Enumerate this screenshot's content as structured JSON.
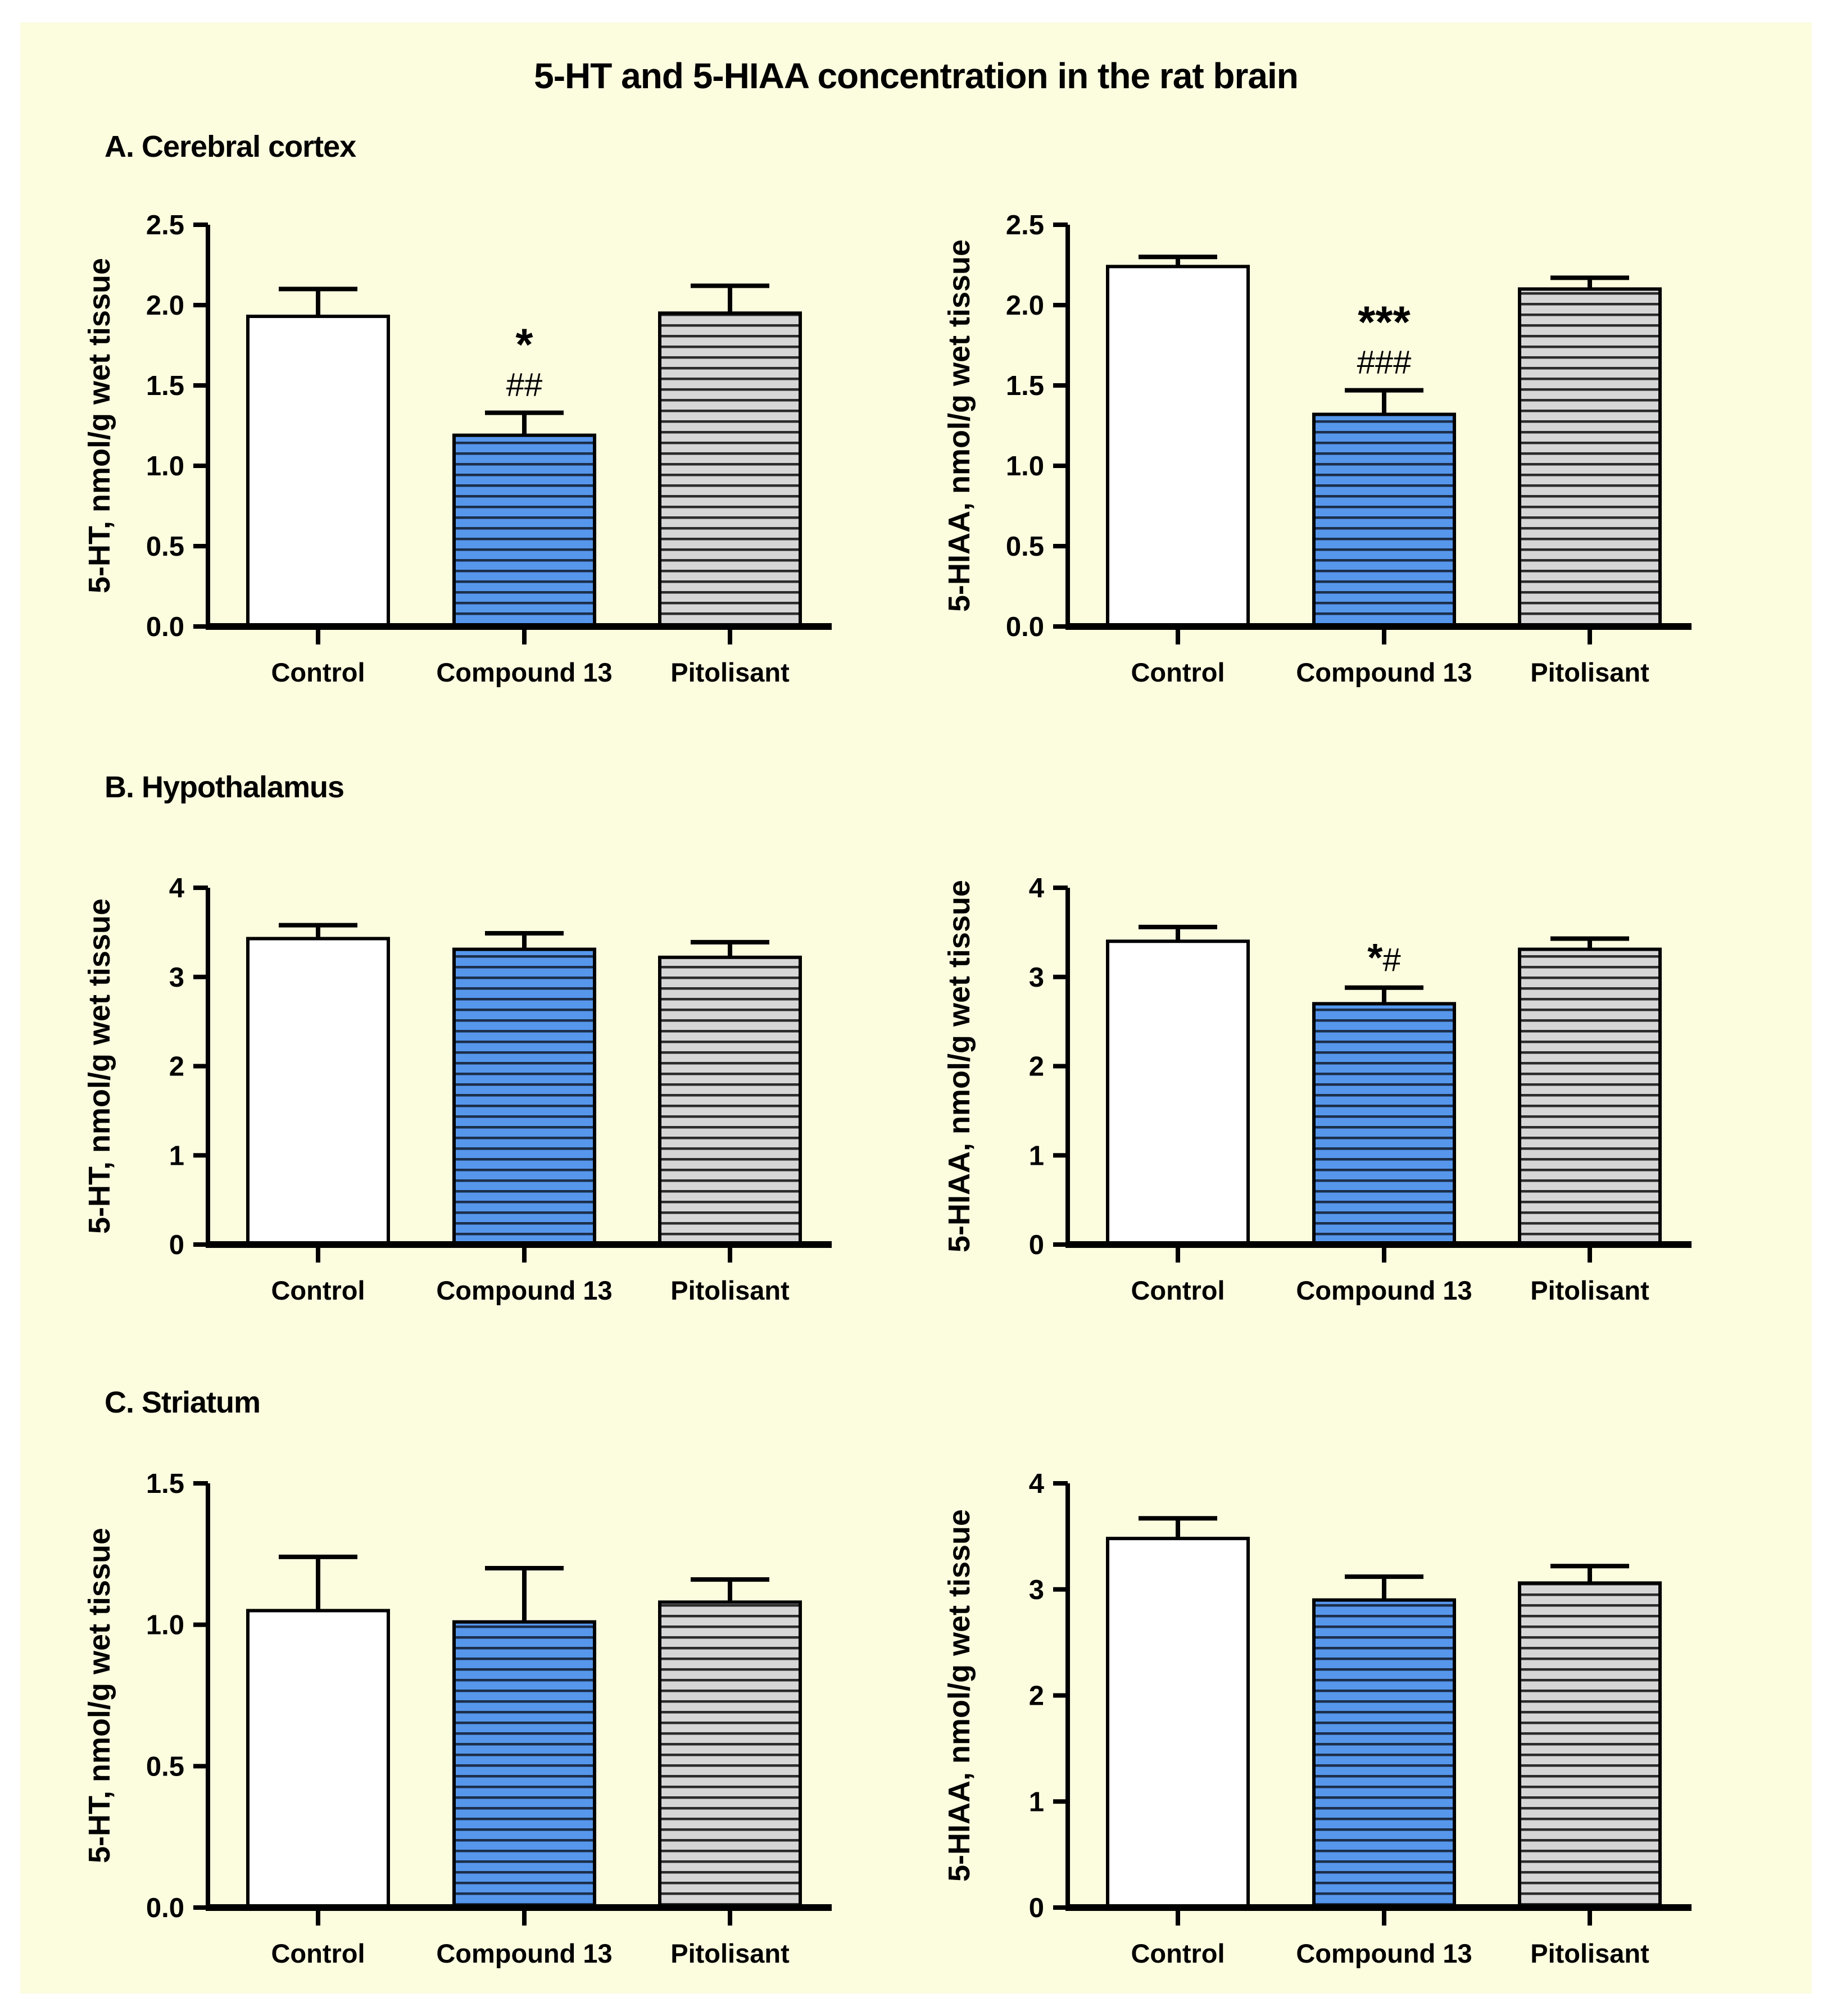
{
  "title": "5-HT and 5-HIAA concentration in the rat brain",
  "sections": [
    {
      "label": "A. Cerebral cortex"
    },
    {
      "label": "B. Hypothalamus"
    },
    {
      "label": "C. Striatum"
    }
  ],
  "categories": [
    "Control",
    "Compound 13",
    "Pitolisant"
  ],
  "bar_styles": [
    "control",
    "compound13",
    "pitolisant"
  ],
  "colors": {
    "page_background": "#FFFFFF",
    "panel_background": "#FCFCDF",
    "bar_control_fill": "#FFFFFF",
    "bar_compound13_fill": "#5697EC",
    "bar_compound13_stripe": "#1C2E4A",
    "bar_pitolisant_fill": "#D6D6D6",
    "bar_pitolisant_stripe": "#2B2B2B",
    "outline": "#000000"
  },
  "chart_data": [
    {
      "type": "bar",
      "section": "A. Cerebral cortex",
      "analyte": "5-HT",
      "ylabel": "5-HT, nmol/g wet tissue",
      "xlabel": "",
      "categories": [
        "Control",
        "Compound 13",
        "Pitolisant"
      ],
      "values": [
        1.93,
        1.19,
        1.95
      ],
      "errors_upper": [
        0.17,
        0.14,
        0.17
      ],
      "annotations": [
        [],
        [
          "*",
          "##"
        ],
        []
      ],
      "ylim": [
        0,
        2.5
      ],
      "yticks": [
        "0.0",
        "0.5",
        "1.0",
        "1.5",
        "2.0",
        "2.5"
      ],
      "grid": "off",
      "legend": "none"
    },
    {
      "type": "bar",
      "section": "A. Cerebral cortex",
      "analyte": "5-HIAA",
      "ylabel": "5-HIAA, nmol/g wet tissue",
      "xlabel": "",
      "categories": [
        "Control",
        "Compound 13",
        "Pitolisant"
      ],
      "values": [
        2.24,
        1.32,
        2.1
      ],
      "errors_upper": [
        0.06,
        0.15,
        0.07
      ],
      "annotations": [
        [],
        [
          "***",
          "###"
        ],
        []
      ],
      "ylim": [
        0,
        2.5
      ],
      "yticks": [
        "0.0",
        "0.5",
        "1.0",
        "1.5",
        "2.0",
        "2.5"
      ],
      "grid": "off",
      "legend": "none"
    },
    {
      "type": "bar",
      "section": "B. Hypothalamus",
      "analyte": "5-HT",
      "ylabel": "5-HT, nmol/g wet tissue",
      "xlabel": "",
      "categories": [
        "Control",
        "Compound 13",
        "Pitolisant"
      ],
      "values": [
        3.43,
        3.31,
        3.22
      ],
      "errors_upper": [
        0.15,
        0.18,
        0.17
      ],
      "annotations": [
        [],
        [],
        []
      ],
      "ylim": [
        0,
        4
      ],
      "yticks": [
        "0",
        "1",
        "2",
        "3",
        "4"
      ],
      "grid": "off",
      "legend": "none"
    },
    {
      "type": "bar",
      "section": "B. Hypothalamus",
      "analyte": "5-HIAA",
      "ylabel": "5-HIAA, nmol/g wet tissue",
      "xlabel": "",
      "categories": [
        "Control",
        "Compound 13",
        "Pitolisant"
      ],
      "values": [
        3.4,
        2.7,
        3.31
      ],
      "errors_upper": [
        0.16,
        0.18,
        0.12
      ],
      "annotations": [
        [],
        [
          "*#"
        ],
        []
      ],
      "ylim": [
        0,
        4
      ],
      "yticks": [
        "0",
        "1",
        "2",
        "3",
        "4"
      ],
      "grid": "off",
      "legend": "none"
    },
    {
      "type": "bar",
      "section": "C. Striatum",
      "analyte": "5-HT",
      "ylabel": "5-HT, nmol/g wet tissue",
      "xlabel": "",
      "categories": [
        "Control",
        "Compound 13",
        "Pitolisant"
      ],
      "values": [
        1.05,
        1.01,
        1.08
      ],
      "errors_upper": [
        0.19,
        0.19,
        0.08
      ],
      "annotations": [
        [],
        [],
        []
      ],
      "ylim": [
        0,
        1.5
      ],
      "yticks": [
        "0.0",
        "0.5",
        "1.0",
        "1.5"
      ],
      "grid": "off",
      "legend": "none"
    },
    {
      "type": "bar",
      "section": "C. Striatum",
      "analyte": "5-HIAA",
      "ylabel": "5-HIAA, nmol/g wet tissue",
      "xlabel": "",
      "categories": [
        "Control",
        "Compound 13",
        "Pitolisant"
      ],
      "values": [
        3.48,
        2.9,
        3.06
      ],
      "errors_upper": [
        0.19,
        0.22,
        0.16
      ],
      "annotations": [
        [],
        [],
        []
      ],
      "ylim": [
        0,
        4
      ],
      "yticks": [
        "0",
        "1",
        "2",
        "3",
        "4"
      ],
      "grid": "off",
      "legend": "none"
    }
  ]
}
